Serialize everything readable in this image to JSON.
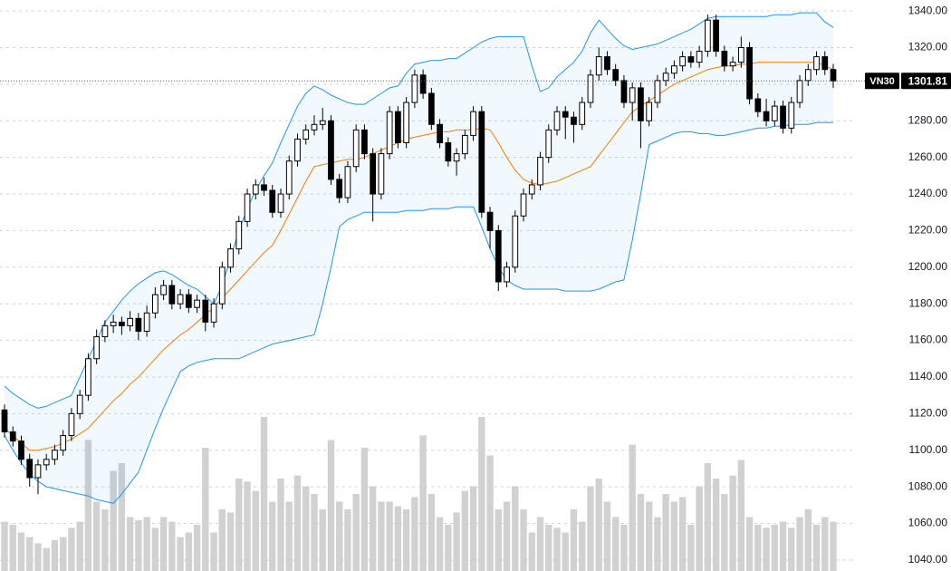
{
  "chart_data": {
    "type": "candlestick",
    "symbol": "VN30",
    "ylim": [
      1034,
      1346
    ],
    "yticks": [
      {
        "value": 1040,
        "label": "1040.00"
      },
      {
        "value": 1060,
        "label": "1060.00"
      },
      {
        "value": 1080,
        "label": "1080.00"
      },
      {
        "value": 1100,
        "label": "1100.00"
      },
      {
        "value": 1120,
        "label": "1120.00"
      },
      {
        "value": 1140,
        "label": "1140.00"
      },
      {
        "value": 1160,
        "label": "1160.00"
      },
      {
        "value": 1180,
        "label": "1180.00"
      },
      {
        "value": 1200,
        "label": "1200.00"
      },
      {
        "value": 1220,
        "label": "1220.00"
      },
      {
        "value": 1240,
        "label": "1240.00"
      },
      {
        "value": 1260,
        "label": "1260.00"
      },
      {
        "value": 1280,
        "label": "1280.00"
      },
      {
        "value": 1300,
        "label": "1300.00"
      },
      {
        "value": 1320,
        "label": "1320.00"
      },
      {
        "value": 1340,
        "label": "1340.00"
      }
    ],
    "grid": true,
    "vlim": [
      0,
      100
    ],
    "colors": {
      "up": "#ffffff",
      "down": "#000000",
      "band": "#2196f3",
      "basis": "#f57c00",
      "fill": "rgba(33,150,243,0.06)",
      "volume": "#d1d1d1"
    },
    "ohlc": [
      [
        1122,
        1125,
        1107,
        1110
      ],
      [
        1110,
        1113,
        1102,
        1105
      ],
      [
        1105,
        1108,
        1092,
        1095
      ],
      [
        1095,
        1098,
        1080,
        1085
      ],
      [
        1085,
        1095,
        1076,
        1092
      ],
      [
        1092,
        1098,
        1089,
        1095
      ],
      [
        1095,
        1103,
        1092,
        1100
      ],
      [
        1100,
        1111,
        1097,
        1108
      ],
      [
        1108,
        1123,
        1105,
        1120
      ],
      [
        1120,
        1133,
        1117,
        1130
      ],
      [
        1130,
        1153,
        1127,
        1150
      ],
      [
        1150,
        1166,
        1147,
        1162
      ],
      [
        1162,
        1171,
        1159,
        1168
      ],
      [
        1168,
        1174,
        1164,
        1170
      ],
      [
        1170,
        1173,
        1163,
        1168
      ],
      [
        1168,
        1176,
        1165,
        1172
      ],
      [
        1172,
        1175,
        1160,
        1165
      ],
      [
        1165,
        1179,
        1162,
        1175
      ],
      [
        1175,
        1189,
        1172,
        1185
      ],
      [
        1185,
        1193,
        1182,
        1190
      ],
      [
        1190,
        1193,
        1177,
        1180
      ],
      [
        1180,
        1188,
        1177,
        1185
      ],
      [
        1185,
        1188,
        1175,
        1178
      ],
      [
        1178,
        1185,
        1175,
        1182
      ],
      [
        1182,
        1185,
        1165,
        1170
      ],
      [
        1170,
        1183,
        1167,
        1180
      ],
      [
        1180,
        1203,
        1177,
        1200
      ],
      [
        1200,
        1213,
        1197,
        1210
      ],
      [
        1210,
        1228,
        1207,
        1225
      ],
      [
        1225,
        1243,
        1222,
        1240
      ],
      [
        1240,
        1248,
        1237,
        1245
      ],
      [
        1245,
        1249,
        1239,
        1242
      ],
      [
        1242,
        1245,
        1227,
        1230
      ],
      [
        1230,
        1243,
        1227,
        1240
      ],
      [
        1240,
        1261,
        1237,
        1258
      ],
      [
        1258,
        1273,
        1255,
        1270
      ],
      [
        1270,
        1278,
        1267,
        1275
      ],
      [
        1275,
        1283,
        1272,
        1278
      ],
      [
        1278,
        1287,
        1275,
        1280
      ],
      [
        1280,
        1283,
        1245,
        1248
      ],
      [
        1248,
        1251,
        1235,
        1238
      ],
      [
        1238,
        1258,
        1235,
        1255
      ],
      [
        1255,
        1278,
        1252,
        1275
      ],
      [
        1275,
        1278,
        1259,
        1262
      ],
      [
        1262,
        1265,
        1225,
        1240
      ],
      [
        1240,
        1265,
        1237,
        1262
      ],
      [
        1262,
        1288,
        1259,
        1285
      ],
      [
        1285,
        1288,
        1265,
        1268
      ],
      [
        1268,
        1293,
        1265,
        1290
      ],
      [
        1290,
        1308,
        1287,
        1305
      ],
      [
        1305,
        1308,
        1292,
        1295
      ],
      [
        1295,
        1298,
        1275,
        1278
      ],
      [
        1278,
        1281,
        1265,
        1268
      ],
      [
        1268,
        1271,
        1255,
        1258
      ],
      [
        1258,
        1265,
        1250,
        1262
      ],
      [
        1262,
        1275,
        1259,
        1272
      ],
      [
        1272,
        1288,
        1269,
        1285
      ],
      [
        1285,
        1288,
        1227,
        1230
      ],
      [
        1230,
        1233,
        1210,
        1220
      ],
      [
        1220,
        1223,
        1187,
        1192
      ],
      [
        1192,
        1203,
        1189,
        1200
      ],
      [
        1200,
        1231,
        1197,
        1228
      ],
      [
        1228,
        1243,
        1225,
        1240
      ],
      [
        1240,
        1248,
        1237,
        1245
      ],
      [
        1245,
        1263,
        1242,
        1260
      ],
      [
        1260,
        1278,
        1257,
        1275
      ],
      [
        1275,
        1288,
        1272,
        1285
      ],
      [
        1285,
        1288,
        1270,
        1282
      ],
      [
        1282,
        1285,
        1268,
        1278
      ],
      [
        1278,
        1293,
        1275,
        1290
      ],
      [
        1290,
        1308,
        1287,
        1305
      ],
      [
        1305,
        1320,
        1302,
        1315
      ],
      [
        1315,
        1318,
        1305,
        1308
      ],
      [
        1308,
        1311,
        1299,
        1302
      ],
      [
        1302,
        1305,
        1287,
        1290
      ],
      [
        1290,
        1301,
        1280,
        1298
      ],
      [
        1298,
        1301,
        1265,
        1280
      ],
      [
        1280,
        1293,
        1277,
        1290
      ],
      [
        1290,
        1305,
        1287,
        1302
      ],
      [
        1302,
        1309,
        1299,
        1306
      ],
      [
        1306,
        1313,
        1303,
        1310
      ],
      [
        1310,
        1318,
        1307,
        1315
      ],
      [
        1315,
        1318,
        1309,
        1312
      ],
      [
        1312,
        1321,
        1309,
        1318
      ],
      [
        1318,
        1338,
        1315,
        1335
      ],
      [
        1335,
        1338,
        1315,
        1318
      ],
      [
        1318,
        1321,
        1307,
        1310
      ],
      [
        1310,
        1315,
        1307,
        1312
      ],
      [
        1312,
        1326,
        1309,
        1320
      ],
      [
        1320,
        1323,
        1289,
        1292
      ],
      [
        1292,
        1295,
        1282,
        1285
      ],
      [
        1285,
        1292,
        1277,
        1280
      ],
      [
        1280,
        1291,
        1277,
        1288
      ],
      [
        1288,
        1291,
        1273,
        1276
      ],
      [
        1276,
        1293,
        1273,
        1290
      ],
      [
        1290,
        1305,
        1287,
        1302
      ],
      [
        1302,
        1311,
        1299,
        1308
      ],
      [
        1308,
        1318,
        1305,
        1315
      ],
      [
        1315,
        1318,
        1305,
        1308
      ],
      [
        1308,
        1311,
        1298,
        1301.81
      ]
    ],
    "upper": [
      1135,
      1131,
      1128,
      1125,
      1123,
      1124,
      1126,
      1128,
      1130,
      1140,
      1150,
      1160,
      1170,
      1176,
      1182,
      1187,
      1191,
      1194,
      1197,
      1198,
      1196,
      1193,
      1190,
      1188,
      1184,
      1180,
      1190,
      1205,
      1220,
      1232,
      1242,
      1250,
      1257,
      1268,
      1278,
      1288,
      1295,
      1299,
      1297,
      1294,
      1292,
      1290,
      1289,
      1289,
      1292,
      1295,
      1298,
      1299,
      1306,
      1311,
      1312,
      1313,
      1313,
      1314,
      1314,
      1317,
      1320,
      1323,
      1325,
      1326,
      1326,
      1326,
      1326,
      1310,
      1296,
      1298,
      1304,
      1308,
      1312,
      1318,
      1328,
      1335,
      1330,
      1325,
      1321,
      1319,
      1320,
      1321,
      1322,
      1324,
      1326,
      1328,
      1330,
      1333,
      1336,
      1337,
      1337,
      1337,
      1337,
      1337,
      1337,
      1337,
      1338,
      1338,
      1338,
      1339,
      1339,
      1339,
      1334,
      1331
    ],
    "middle": [
      1112,
      1108,
      1104,
      1100,
      1100,
      1101,
      1102,
      1104,
      1106,
      1109,
      1112,
      1117,
      1122,
      1127,
      1131,
      1136,
      1140,
      1145,
      1150,
      1155,
      1159,
      1163,
      1166,
      1170,
      1174,
      1178,
      1183,
      1188,
      1193,
      1198,
      1203,
      1208,
      1212,
      1220,
      1229,
      1238,
      1247,
      1255,
      1256,
      1257,
      1258,
      1259,
      1259,
      1260,
      1262,
      1264,
      1266,
      1268,
      1270,
      1271,
      1272,
      1273,
      1274,
      1274,
      1275,
      1275,
      1275,
      1276,
      1275,
      1268,
      1260,
      1253,
      1248,
      1246,
      1245,
      1246,
      1247,
      1249,
      1251,
      1253,
      1255,
      1261,
      1267,
      1273,
      1279,
      1285,
      1288,
      1291,
      1294,
      1297,
      1300,
      1302,
      1304,
      1306,
      1308,
      1309,
      1310,
      1310,
      1311,
      1311,
      1312,
      1312,
      1312,
      1312,
      1312,
      1312,
      1312,
      1312,
      1310,
      1308
    ],
    "lower": [
      1108,
      1100,
      1093,
      1087,
      1083,
      1080,
      1079,
      1078,
      1077,
      1076,
      1075,
      1073,
      1072,
      1071,
      1076,
      1082,
      1088,
      1100,
      1112,
      1123,
      1133,
      1143,
      1146,
      1148,
      1149,
      1150,
      1150,
      1150,
      1150,
      1152,
      1154,
      1156,
      1158,
      1159,
      1160,
      1161,
      1162,
      1163,
      1180,
      1200,
      1222,
      1226,
      1228,
      1230,
      1230,
      1230,
      1230,
      1230,
      1231,
      1231,
      1231,
      1232,
      1232,
      1232,
      1233,
      1233,
      1233,
      1222,
      1210,
      1200,
      1193,
      1190,
      1188,
      1188,
      1188,
      1188,
      1188,
      1187,
      1187,
      1187,
      1187,
      1188,
      1190,
      1192,
      1193,
      1215,
      1240,
      1267,
      1269,
      1271,
      1273,
      1274,
      1274,
      1273,
      1273,
      1272,
      1272,
      1273,
      1274,
      1275,
      1276,
      1276,
      1277,
      1277,
      1278,
      1278,
      1278,
      1279,
      1279,
      1279
    ],
    "volume": [
      32,
      30,
      25,
      22,
      18,
      15,
      20,
      22,
      28,
      32,
      85,
      45,
      40,
      65,
      70,
      35,
      33,
      35,
      28,
      35,
      32,
      22,
      25,
      30,
      80,
      25,
      40,
      38,
      60,
      58,
      52,
      100,
      45,
      60,
      45,
      62,
      55,
      50,
      40,
      85,
      45,
      40,
      50,
      80,
      55,
      45,
      45,
      42,
      40,
      48,
      88,
      50,
      35,
      30,
      38,
      52,
      55,
      100,
      75,
      40,
      45,
      55,
      40,
      25,
      35,
      30,
      28,
      25,
      40,
      32,
      55,
      60,
      45,
      35,
      30,
      82,
      50,
      45,
      35,
      50,
      45,
      48,
      30,
      55,
      70,
      60,
      50,
      62,
      72,
      35,
      30,
      28,
      30,
      32,
      28,
      35,
      40,
      30,
      35,
      32
    ]
  }
}
